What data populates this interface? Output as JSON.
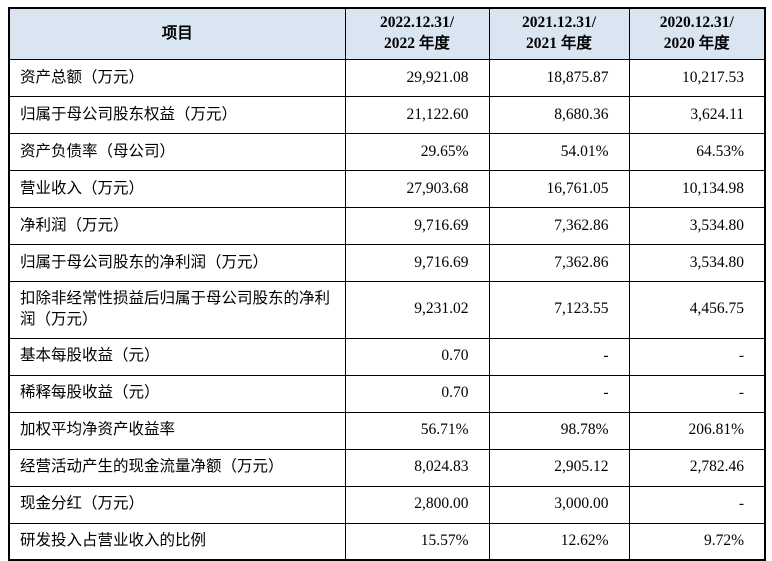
{
  "table": {
    "header": {
      "item_label": "项目",
      "periods": [
        {
          "line1": "2022.12.31/",
          "line2": "2022 年度"
        },
        {
          "line1": "2021.12.31/",
          "line2": "2021 年度"
        },
        {
          "line1": "2020.12.31/",
          "line2": "2020 年度"
        }
      ]
    },
    "rows": [
      {
        "label": "资产总额（万元）",
        "values": [
          "29,921.08",
          "18,875.87",
          "10,217.53"
        ]
      },
      {
        "label": "归属于母公司股东权益（万元）",
        "values": [
          "21,122.60",
          "8,680.36",
          "3,624.11"
        ]
      },
      {
        "label": "资产负债率（母公司）",
        "values": [
          "29.65%",
          "54.01%",
          "64.53%"
        ]
      },
      {
        "label": "营业收入（万元）",
        "values": [
          "27,903.68",
          "16,761.05",
          "10,134.98"
        ]
      },
      {
        "label": "净利润（万元）",
        "values": [
          "9,716.69",
          "7,362.86",
          "3,534.80"
        ]
      },
      {
        "label": "归属于母公司股东的净利润（万元）",
        "values": [
          "9,716.69",
          "7,362.86",
          "3,534.80"
        ]
      },
      {
        "label": "扣除非经常性损益后归属于母公司股东的净利润（万元）",
        "values": [
          "9,231.02",
          "7,123.55",
          "4,456.75"
        ]
      },
      {
        "label": "基本每股收益（元）",
        "values": [
          "0.70",
          "-",
          "-"
        ]
      },
      {
        "label": "稀释每股收益（元）",
        "values": [
          "0.70",
          "-",
          "-"
        ]
      },
      {
        "label": "加权平均净资产收益率",
        "values": [
          "56.71%",
          "98.78%",
          "206.81%"
        ]
      },
      {
        "label": "经营活动产生的现金流量净额（万元）",
        "values": [
          "8,024.83",
          "2,905.12",
          "2,782.46"
        ]
      },
      {
        "label": "现金分红（万元）",
        "values": [
          "2,800.00",
          "3,000.00",
          "-"
        ]
      },
      {
        "label": "研发投入占营业收入的比例",
        "values": [
          "15.57%",
          "12.62%",
          "9.72%"
        ]
      }
    ],
    "style": {
      "header_bg": "#d9e6f2",
      "border_color": "#000000"
    }
  }
}
